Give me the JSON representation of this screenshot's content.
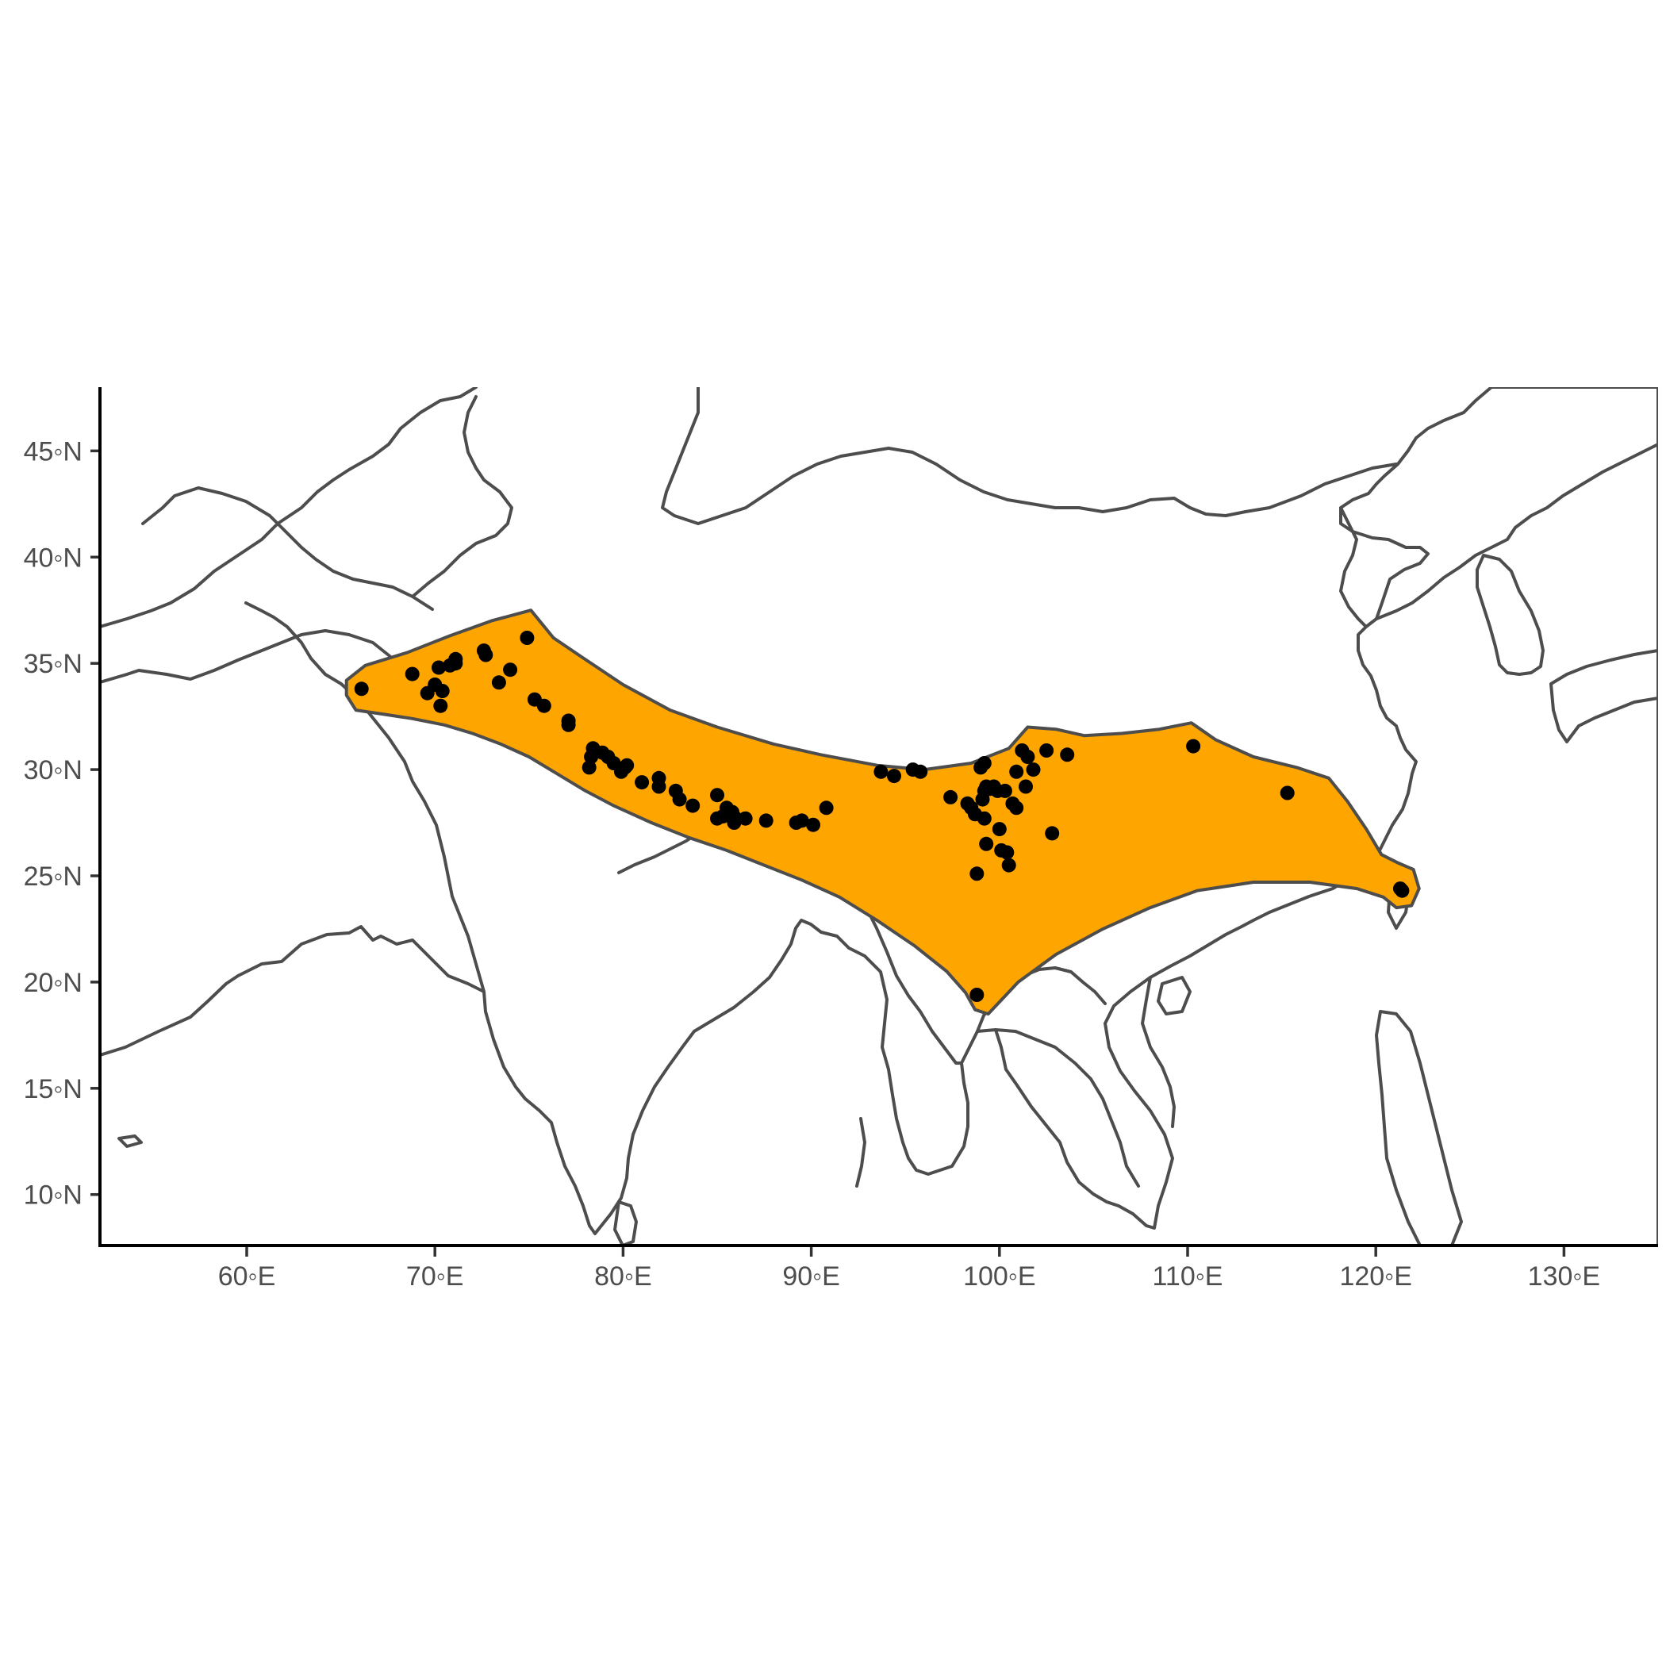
{
  "map": {
    "projection": "equirectangular",
    "lon_range": [
      52.2,
      135.0
    ],
    "lat_range": [
      7.6,
      48.0
    ],
    "colors": {
      "background": "#ffffff",
      "country_border": "#4d4d4d",
      "range_fill": "#FFA500",
      "occurrence_point": "#000000",
      "axis": "#000000"
    },
    "x_ticks": [
      {
        "value": 60,
        "label": "60◦E"
      },
      {
        "value": 70,
        "label": "70◦E"
      },
      {
        "value": 80,
        "label": "80◦E"
      },
      {
        "value": 90,
        "label": "90◦E"
      },
      {
        "value": 100,
        "label": "100◦E"
      },
      {
        "value": 110,
        "label": "110◦E"
      },
      {
        "value": 120,
        "label": "120◦E"
      },
      {
        "value": 130,
        "label": "130◦E"
      }
    ],
    "y_ticks": [
      {
        "value": 10,
        "label": "10◦N"
      },
      {
        "value": 15,
        "label": "15◦N"
      },
      {
        "value": 20,
        "label": "20◦N"
      },
      {
        "value": 25,
        "label": "25◦N"
      },
      {
        "value": 30,
        "label": "30◦N"
      },
      {
        "value": 35,
        "label": "35◦N"
      },
      {
        "value": 40,
        "label": "40◦N"
      },
      {
        "value": 45,
        "label": "45◦N"
      }
    ],
    "range_polygon": [
      [
        65.3,
        34.2
      ],
      [
        66.3,
        34.9
      ],
      [
        68.5,
        35.5
      ],
      [
        70.8,
        36.3
      ],
      [
        73.0,
        37.0
      ],
      [
        75.1,
        37.5
      ],
      [
        76.3,
        36.2
      ],
      [
        77.8,
        35.3
      ],
      [
        80.0,
        34.0
      ],
      [
        82.5,
        32.8
      ],
      [
        85.0,
        32.0
      ],
      [
        88.0,
        31.2
      ],
      [
        90.5,
        30.7
      ],
      [
        93.5,
        30.2
      ],
      [
        96.0,
        30.0
      ],
      [
        98.5,
        30.3
      ],
      [
        100.5,
        31.0
      ],
      [
        101.5,
        32.0
      ],
      [
        103.0,
        31.9
      ],
      [
        104.5,
        31.6
      ],
      [
        106.5,
        31.7
      ],
      [
        108.5,
        31.9
      ],
      [
        110.2,
        32.2
      ],
      [
        111.5,
        31.4
      ],
      [
        113.5,
        30.6
      ],
      [
        115.8,
        30.1
      ],
      [
        117.5,
        29.6
      ],
      [
        118.5,
        28.5
      ],
      [
        119.5,
        27.2
      ],
      [
        120.3,
        26.0
      ],
      [
        121.2,
        25.6
      ],
      [
        122.0,
        25.3
      ],
      [
        122.3,
        24.4
      ],
      [
        121.9,
        23.6
      ],
      [
        121.1,
        23.5
      ],
      [
        120.4,
        24.0
      ],
      [
        119.0,
        24.4
      ],
      [
        116.5,
        24.7
      ],
      [
        113.5,
        24.7
      ],
      [
        110.5,
        24.3
      ],
      [
        108.0,
        23.5
      ],
      [
        105.5,
        22.5
      ],
      [
        103.0,
        21.3
      ],
      [
        101.0,
        20.0
      ],
      [
        99.4,
        18.5
      ],
      [
        98.7,
        18.7
      ],
      [
        98.2,
        19.5
      ],
      [
        97.2,
        20.5
      ],
      [
        95.5,
        21.7
      ],
      [
        93.5,
        22.9
      ],
      [
        91.5,
        24.0
      ],
      [
        89.5,
        24.8
      ],
      [
        87.5,
        25.5
      ],
      [
        85.5,
        26.2
      ],
      [
        83.5,
        26.8
      ],
      [
        81.5,
        27.5
      ],
      [
        79.5,
        28.3
      ],
      [
        78.0,
        29.0
      ],
      [
        76.5,
        29.8
      ],
      [
        75.0,
        30.6
      ],
      [
        73.5,
        31.2
      ],
      [
        72.0,
        31.7
      ],
      [
        70.5,
        32.1
      ],
      [
        68.8,
        32.4
      ],
      [
        67.3,
        32.6
      ],
      [
        65.8,
        32.8
      ],
      [
        65.3,
        33.5
      ]
    ],
    "points": [
      [
        66.1,
        33.8
      ],
      [
        68.8,
        34.5
      ],
      [
        69.6,
        33.6
      ],
      [
        70.0,
        34.0
      ],
      [
        70.2,
        34.8
      ],
      [
        70.4,
        33.7
      ],
      [
        70.3,
        33.0
      ],
      [
        70.8,
        34.9
      ],
      [
        71.1,
        35.2
      ],
      [
        71.1,
        35.0
      ],
      [
        72.6,
        35.6
      ],
      [
        72.7,
        35.4
      ],
      [
        73.4,
        34.1
      ],
      [
        74.0,
        34.7
      ],
      [
        74.9,
        36.2
      ],
      [
        75.3,
        33.3
      ],
      [
        75.8,
        33.0
      ],
      [
        77.1,
        32.3
      ],
      [
        77.1,
        32.1
      ],
      [
        78.3,
        30.6
      ],
      [
        78.2,
        30.1
      ],
      [
        78.4,
        31.0
      ],
      [
        78.9,
        30.8
      ],
      [
        79.2,
        30.6
      ],
      [
        79.5,
        30.3
      ],
      [
        79.9,
        29.9
      ],
      [
        80.2,
        30.2
      ],
      [
        80.1,
        30.1
      ],
      [
        81.0,
        29.4
      ],
      [
        81.9,
        29.6
      ],
      [
        81.9,
        29.2
      ],
      [
        82.8,
        29.0
      ],
      [
        83.0,
        28.6
      ],
      [
        83.7,
        28.3
      ],
      [
        85.0,
        28.8
      ],
      [
        85.0,
        27.7
      ],
      [
        85.3,
        27.8
      ],
      [
        85.5,
        28.2
      ],
      [
        85.8,
        28.0
      ],
      [
        86.0,
        27.7
      ],
      [
        85.9,
        27.5
      ],
      [
        86.5,
        27.7
      ],
      [
        87.6,
        27.6
      ],
      [
        89.2,
        27.5
      ],
      [
        89.5,
        27.6
      ],
      [
        90.1,
        27.4
      ],
      [
        90.8,
        28.2
      ],
      [
        93.7,
        29.9
      ],
      [
        94.4,
        29.7
      ],
      [
        95.4,
        30.0
      ],
      [
        95.8,
        29.9
      ],
      [
        97.4,
        28.7
      ],
      [
        98.3,
        28.4
      ],
      [
        98.5,
        28.2
      ],
      [
        98.7,
        27.9
      ],
      [
        99.0,
        30.1
      ],
      [
        99.1,
        28.6
      ],
      [
        99.2,
        29.0
      ],
      [
        99.2,
        30.3
      ],
      [
        99.2,
        27.7
      ],
      [
        99.3,
        29.2
      ],
      [
        99.3,
        26.5
      ],
      [
        99.5,
        29.1
      ],
      [
        99.7,
        29.2
      ],
      [
        99.9,
        29.0
      ],
      [
        100.0,
        27.2
      ],
      [
        100.1,
        26.2
      ],
      [
        100.3,
        29.0
      ],
      [
        100.4,
        26.1
      ],
      [
        100.5,
        25.5
      ],
      [
        100.7,
        28.4
      ],
      [
        100.9,
        28.2
      ],
      [
        100.9,
        29.9
      ],
      [
        101.2,
        30.9
      ],
      [
        101.4,
        29.2
      ],
      [
        101.5,
        30.6
      ],
      [
        101.8,
        30.0
      ],
      [
        102.5,
        30.9
      ],
      [
        102.8,
        27.0
      ],
      [
        103.6,
        30.7
      ],
      [
        98.8,
        25.1
      ],
      [
        98.8,
        19.4
      ],
      [
        110.3,
        31.1
      ],
      [
        115.3,
        28.9
      ],
      [
        121.3,
        24.4
      ],
      [
        121.4,
        24.3
      ]
    ]
  }
}
